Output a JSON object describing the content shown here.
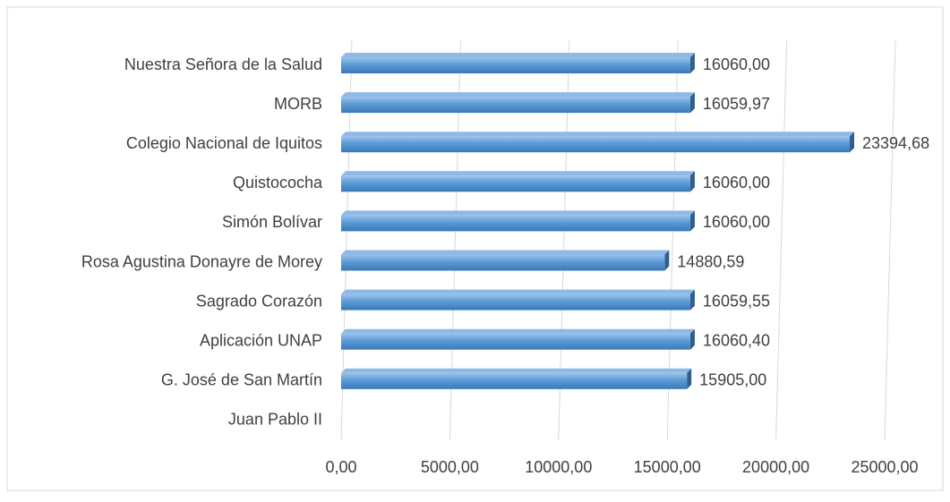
{
  "chart_data": {
    "type": "bar",
    "orientation": "horizontal",
    "categories": [
      "Nuestra Señora de la Salud",
      "MORB",
      "Colegio Nacional de Iquitos",
      "Quistococha",
      "Simón Bolívar",
      "Rosa Agustina Donayre de Morey",
      "Sagrado Corazón",
      "Aplicación UNAP",
      "G. José de San Martín",
      "Juan Pablo II"
    ],
    "values": [
      16060.0,
      16059.97,
      23394.68,
      16060.0,
      16060.0,
      14880.59,
      16059.55,
      16060.4,
      15905.0,
      null
    ],
    "value_labels": [
      "16060,00",
      "16059,97",
      "23394,68",
      "16060,00",
      "16060,00",
      "14880,59",
      "16059,55",
      "16060,40",
      "15905,00",
      null
    ],
    "color": "#5b9bd5",
    "xlim": [
      0,
      25000
    ],
    "xticks": [
      {
        "value": 0,
        "label": "0,00"
      },
      {
        "value": 5000,
        "label": "5000,00"
      },
      {
        "value": 10000,
        "label": "10000,00"
      },
      {
        "value": 15000,
        "label": "15000,00"
      },
      {
        "value": 20000,
        "label": "20000,00"
      },
      {
        "value": 25000,
        "label": "25000,00"
      }
    ],
    "grid": true
  }
}
